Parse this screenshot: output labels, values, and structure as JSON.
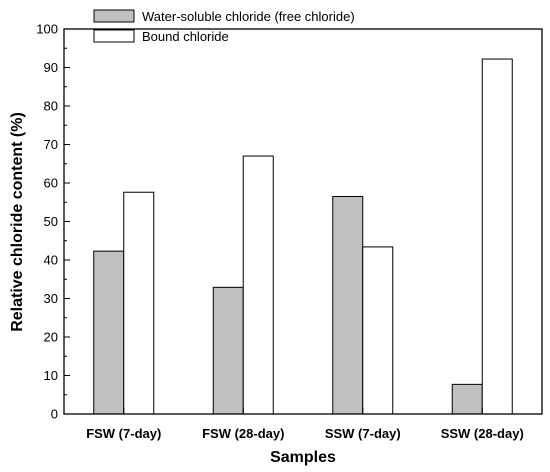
{
  "chart_data": {
    "type": "bar",
    "categories": [
      "FSW (7-day)",
      "FSW (28-day)",
      "SSW (7-day)",
      "SSW (28-day)"
    ],
    "series": [
      {
        "name": "Water-soluble chloride (free chloride)",
        "values": [
          42.3,
          32.9,
          56.5,
          7.7
        ],
        "color": "#c0c0c0"
      },
      {
        "name": "Bound chloride",
        "values": [
          57.6,
          67.0,
          43.4,
          92.2
        ],
        "color": "#ffffff"
      }
    ],
    "xlabel": "Samples",
    "ylabel": "Relative chloride content (%)",
    "ylim": [
      0,
      100
    ],
    "yticks": [
      "0",
      "10",
      "20",
      "30",
      "40",
      "50",
      "60",
      "70",
      "80",
      "90",
      "100"
    ],
    "grid": false,
    "legend_position": "top-left"
  }
}
